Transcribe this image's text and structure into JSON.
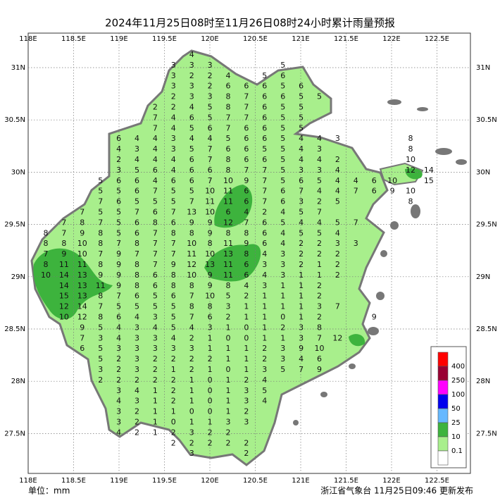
{
  "title": "2024年11月25日08时至11月26日08时24小时累计雨量预报",
  "x_axis": {
    "labels": [
      "118E",
      "118.5E",
      "119E",
      "119.5E",
      "120E",
      "120.5E",
      "121E",
      "121.5E",
      "122E",
      "122.5E"
    ]
  },
  "y_axis": {
    "labels": [
      "31N",
      "30.5N",
      "30N",
      "29.5N",
      "29N",
      "28.5N",
      "28N",
      "27.5N"
    ]
  },
  "stations": [
    [
      null,
      null,
      null,
      null,
      null,
      null,
      null,
      null,
      4
    ],
    [
      null,
      null,
      null,
      null,
      null,
      null,
      null,
      3,
      3,
      3,
      null,
      null,
      null,
      5
    ],
    [
      null,
      null,
      null,
      null,
      null,
      null,
      null,
      3,
      2,
      2,
      4,
      null,
      5,
      6
    ],
    [
      null,
      null,
      null,
      null,
      null,
      null,
      null,
      3,
      3,
      2,
      6,
      6,
      6,
      5,
      6
    ],
    [
      null,
      null,
      null,
      null,
      null,
      null,
      null,
      2,
      3,
      3,
      8,
      7,
      6,
      6,
      5,
      5
    ],
    [
      null,
      null,
      null,
      null,
      null,
      null,
      2,
      2,
      4,
      5,
      8,
      7,
      6,
      5,
      5
    ],
    [
      null,
      null,
      null,
      null,
      null,
      null,
      7,
      4,
      6,
      5,
      7,
      7,
      6,
      5,
      5
    ],
    [
      null,
      null,
      null,
      null,
      null,
      null,
      7,
      4,
      5,
      6,
      7,
      6,
      6,
      5,
      5
    ],
    [
      null,
      null,
      null,
      null,
      6,
      4,
      4,
      3,
      4,
      4,
      5,
      6,
      6,
      5,
      4,
      4,
      3,
      null,
      null,
      null,
      8
    ],
    [
      null,
      null,
      null,
      null,
      4,
      3,
      4,
      3,
      5,
      7,
      6,
      6,
      5,
      5,
      4,
      3,
      null,
      null,
      null,
      null,
      8
    ],
    [
      null,
      null,
      null,
      null,
      2,
      4,
      4,
      4,
      6,
      7,
      8,
      6,
      6,
      5,
      4,
      4,
      2,
      null,
      null,
      null,
      10
    ],
    [
      null,
      null,
      null,
      null,
      3,
      5,
      6,
      4,
      6,
      6,
      8,
      7,
      7,
      5,
      3,
      3,
      4,
      null,
      null,
      null,
      12,
      14
    ],
    [
      null,
      null,
      null,
      5,
      6,
      6,
      4,
      6,
      6,
      7,
      10,
      9,
      7,
      5,
      6,
      5,
      4,
      4,
      6,
      10,
      null,
      15
    ],
    [
      null,
      null,
      null,
      5,
      5,
      6,
      7,
      5,
      5,
      10,
      11,
      6,
      7,
      6,
      7,
      4,
      4,
      7,
      6,
      9,
      10
    ],
    [
      null,
      null,
      null,
      7,
      6,
      5,
      5,
      5,
      7,
      11,
      11,
      6,
      7,
      6,
      3,
      2,
      5,
      null,
      null,
      null,
      8
    ],
    [
      null,
      null,
      7,
      5,
      5,
      7,
      6,
      7,
      13,
      10,
      6,
      4,
      2,
      4,
      5,
      7
    ],
    [
      null,
      7,
      8,
      7,
      5,
      6,
      8,
      6,
      9,
      9,
      12,
      7,
      6,
      5,
      4,
      4,
      5,
      7
    ],
    [
      8,
      7,
      9,
      8,
      5,
      6,
      7,
      8,
      8,
      9,
      8,
      8,
      6,
      4,
      5,
      5,
      4
    ],
    [
      8,
      8,
      10,
      8,
      7,
      8,
      7,
      7,
      10,
      8,
      11,
      9,
      6,
      4,
      2,
      2,
      3,
      3
    ],
    [
      7,
      9,
      10,
      7,
      9,
      7,
      7,
      7,
      11,
      10,
      13,
      8,
      4,
      3,
      2,
      2,
      2
    ],
    [
      8,
      11,
      11,
      8,
      9,
      8,
      7,
      9,
      12,
      13,
      11,
      6,
      3,
      3,
      2,
      1,
      2
    ],
    [
      10,
      14,
      13,
      9,
      9,
      8,
      6,
      8,
      10,
      9,
      11,
      6,
      4,
      3,
      1,
      1,
      2
    ],
    [
      null,
      14,
      13,
      11,
      9,
      8,
      6,
      8,
      8,
      9,
      8,
      4,
      3,
      1,
      1,
      2
    ],
    [
      null,
      15,
      13,
      8,
      7,
      6,
      5,
      6,
      7,
      10,
      5,
      2,
      1,
      1,
      1,
      2
    ],
    [
      null,
      12,
      14,
      7,
      5,
      5,
      5,
      5,
      8,
      8,
      3,
      1,
      1,
      1,
      1,
      3,
      7
    ],
    [
      null,
      10,
      12,
      8,
      6,
      4,
      3,
      5,
      7,
      6,
      2,
      1,
      1,
      0,
      1,
      2,
      null,
      null,
      9
    ],
    [
      null,
      null,
      9,
      5,
      4,
      3,
      4,
      5,
      4,
      3,
      1,
      0,
      1,
      2,
      3,
      8
    ],
    [
      null,
      null,
      7,
      3,
      4,
      3,
      3,
      4,
      2,
      1,
      0,
      0,
      1,
      1,
      3,
      7,
      12
    ],
    [
      null,
      null,
      6,
      5,
      3,
      3,
      3,
      3,
      3,
      1,
      1,
      1,
      2,
      3,
      9,
      10
    ],
    [
      null,
      null,
      null,
      5,
      2,
      3,
      2,
      2,
      2,
      2,
      1,
      1,
      2,
      3,
      4,
      6
    ],
    [
      null,
      null,
      null,
      3,
      2,
      3,
      2,
      1,
      2,
      1,
      0,
      1,
      3,
      5,
      7,
      9
    ],
    [
      null,
      null,
      null,
      2,
      2,
      2,
      2,
      2,
      1,
      0,
      1,
      2,
      4
    ],
    [
      null,
      null,
      null,
      null,
      3,
      4,
      1,
      2,
      1,
      0,
      1,
      3,
      5
    ],
    [
      null,
      null,
      null,
      null,
      4,
      3,
      1,
      2,
      1,
      0,
      1,
      3,
      4
    ],
    [
      null,
      null,
      null,
      null,
      3,
      2,
      1,
      1,
      0,
      0,
      1,
      2
    ],
    [
      null,
      null,
      null,
      null,
      3,
      2,
      1,
      0,
      1,
      1,
      3,
      3
    ],
    [
      null,
      null,
      null,
      null,
      4,
      2,
      1,
      2,
      3,
      2,
      2
    ],
    [
      null,
      null,
      null,
      null,
      null,
      null,
      null,
      2,
      2,
      2,
      2,
      2
    ],
    [
      null,
      null,
      null,
      null,
      null,
      null,
      null,
      null,
      3,
      null,
      null,
      2
    ]
  ],
  "legend": {
    "colors": [
      "#ff0000",
      "#990033",
      "#ff00ff",
      "#0000ee",
      "#66b8ff",
      "#3db33d",
      "#a8ef8c",
      "#ffffff"
    ],
    "labels": [
      "400",
      "250",
      "100",
      "50",
      "25",
      "10",
      "0.1"
    ]
  },
  "footer": {
    "unit": "单位：mm",
    "issuer": "浙江省气象台  11月25日09:46 更新发布"
  }
}
